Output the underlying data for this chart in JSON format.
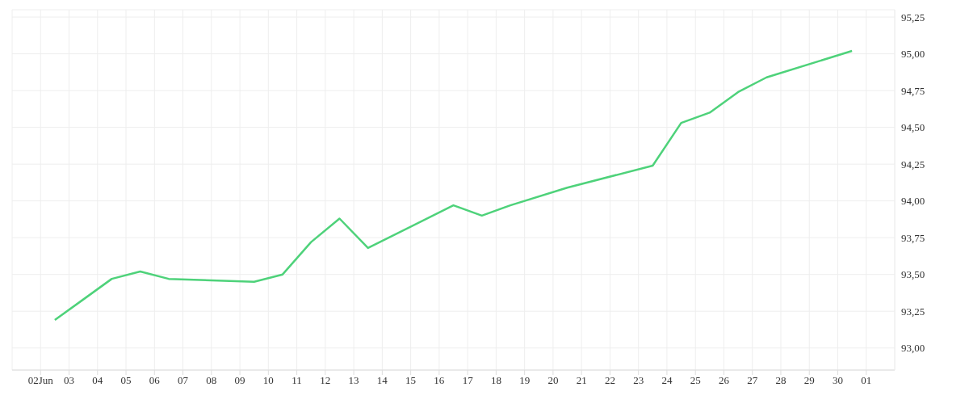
{
  "chart_data": {
    "type": "line",
    "x": [
      "--06-02T12:00",
      "--06-03T12:00",
      "--06-04T12:00",
      "--06-05T12:00",
      "--06-06T12:00",
      "--06-09T12:00",
      "--06-10T12:00",
      "--06-11T12:00",
      "--06-12T12:00",
      "--06-13T12:00",
      "--06-16T12:00",
      "--06-17T12:00",
      "--06-18T12:00",
      "--06-20T12:00",
      "--06-23T12:00",
      "--06-24T12:00",
      "--06-25T12:00",
      "--06-26T12:00",
      "--06-27T12:00",
      "--06-30T12:00"
    ],
    "series": [
      {
        "color": "#4ed27a",
        "values": [
          93.19,
          93.33,
          93.47,
          93.52,
          93.47,
          93.45,
          93.5,
          93.72,
          93.88,
          93.68,
          93.97,
          93.9,
          93.97,
          94.09,
          94.24,
          94.53,
          94.6,
          94.74,
          94.84,
          95.02
        ]
      }
    ],
    "xlim": [
      "--06-01",
      "--07-02"
    ],
    "xticks": [
      {
        "value": "--06-02",
        "label": "02Jun"
      },
      {
        "value": "--06-03",
        "label": "03"
      },
      {
        "value": "--06-04",
        "label": "04"
      },
      {
        "value": "--06-05",
        "label": "05"
      },
      {
        "value": "--06-06",
        "label": "06"
      },
      {
        "value": "--06-07",
        "label": "07"
      },
      {
        "value": "--06-08",
        "label": "08"
      },
      {
        "value": "--06-09",
        "label": "09"
      },
      {
        "value": "--06-10",
        "label": "10"
      },
      {
        "value": "--06-11",
        "label": "11"
      },
      {
        "value": "--06-12",
        "label": "12"
      },
      {
        "value": "--06-13",
        "label": "13"
      },
      {
        "value": "--06-14",
        "label": "14"
      },
      {
        "value": "--06-15",
        "label": "15"
      },
      {
        "value": "--06-16",
        "label": "16"
      },
      {
        "value": "--06-17",
        "label": "17"
      },
      {
        "value": "--06-18",
        "label": "18"
      },
      {
        "value": "--06-19",
        "label": "19"
      },
      {
        "value": "--06-20",
        "label": "20"
      },
      {
        "value": "--06-21",
        "label": "21"
      },
      {
        "value": "--06-22",
        "label": "22"
      },
      {
        "value": "--06-23",
        "label": "23"
      },
      {
        "value": "--06-24",
        "label": "24"
      },
      {
        "value": "--06-25",
        "label": "25"
      },
      {
        "value": "--06-26",
        "label": "26"
      },
      {
        "value": "--06-27",
        "label": "27"
      },
      {
        "value": "--06-28",
        "label": "28"
      },
      {
        "value": "--06-29",
        "label": "29"
      },
      {
        "value": "--06-30",
        "label": "30"
      },
      {
        "value": "--07-01",
        "label": "01"
      }
    ],
    "ylim": [
      92.85,
      95.3
    ],
    "yticks": [
      {
        "value": 93,
        "label": "93,00"
      },
      {
        "value": 93.25,
        "label": "93,25"
      },
      {
        "value": 93.5,
        "label": "93,50"
      },
      {
        "value": 93.75,
        "label": "93,75"
      },
      {
        "value": 94,
        "label": "94,00"
      },
      {
        "value": 94.25,
        "label": "94,25"
      },
      {
        "value": 94.5,
        "label": "94,50"
      },
      {
        "value": 94.75,
        "label": "94,75"
      },
      {
        "value": 95,
        "label": "95,00"
      },
      {
        "value": 95.25,
        "label": "95,25"
      }
    ],
    "grid": true,
    "marker": "none",
    "line_style": "solid"
  }
}
